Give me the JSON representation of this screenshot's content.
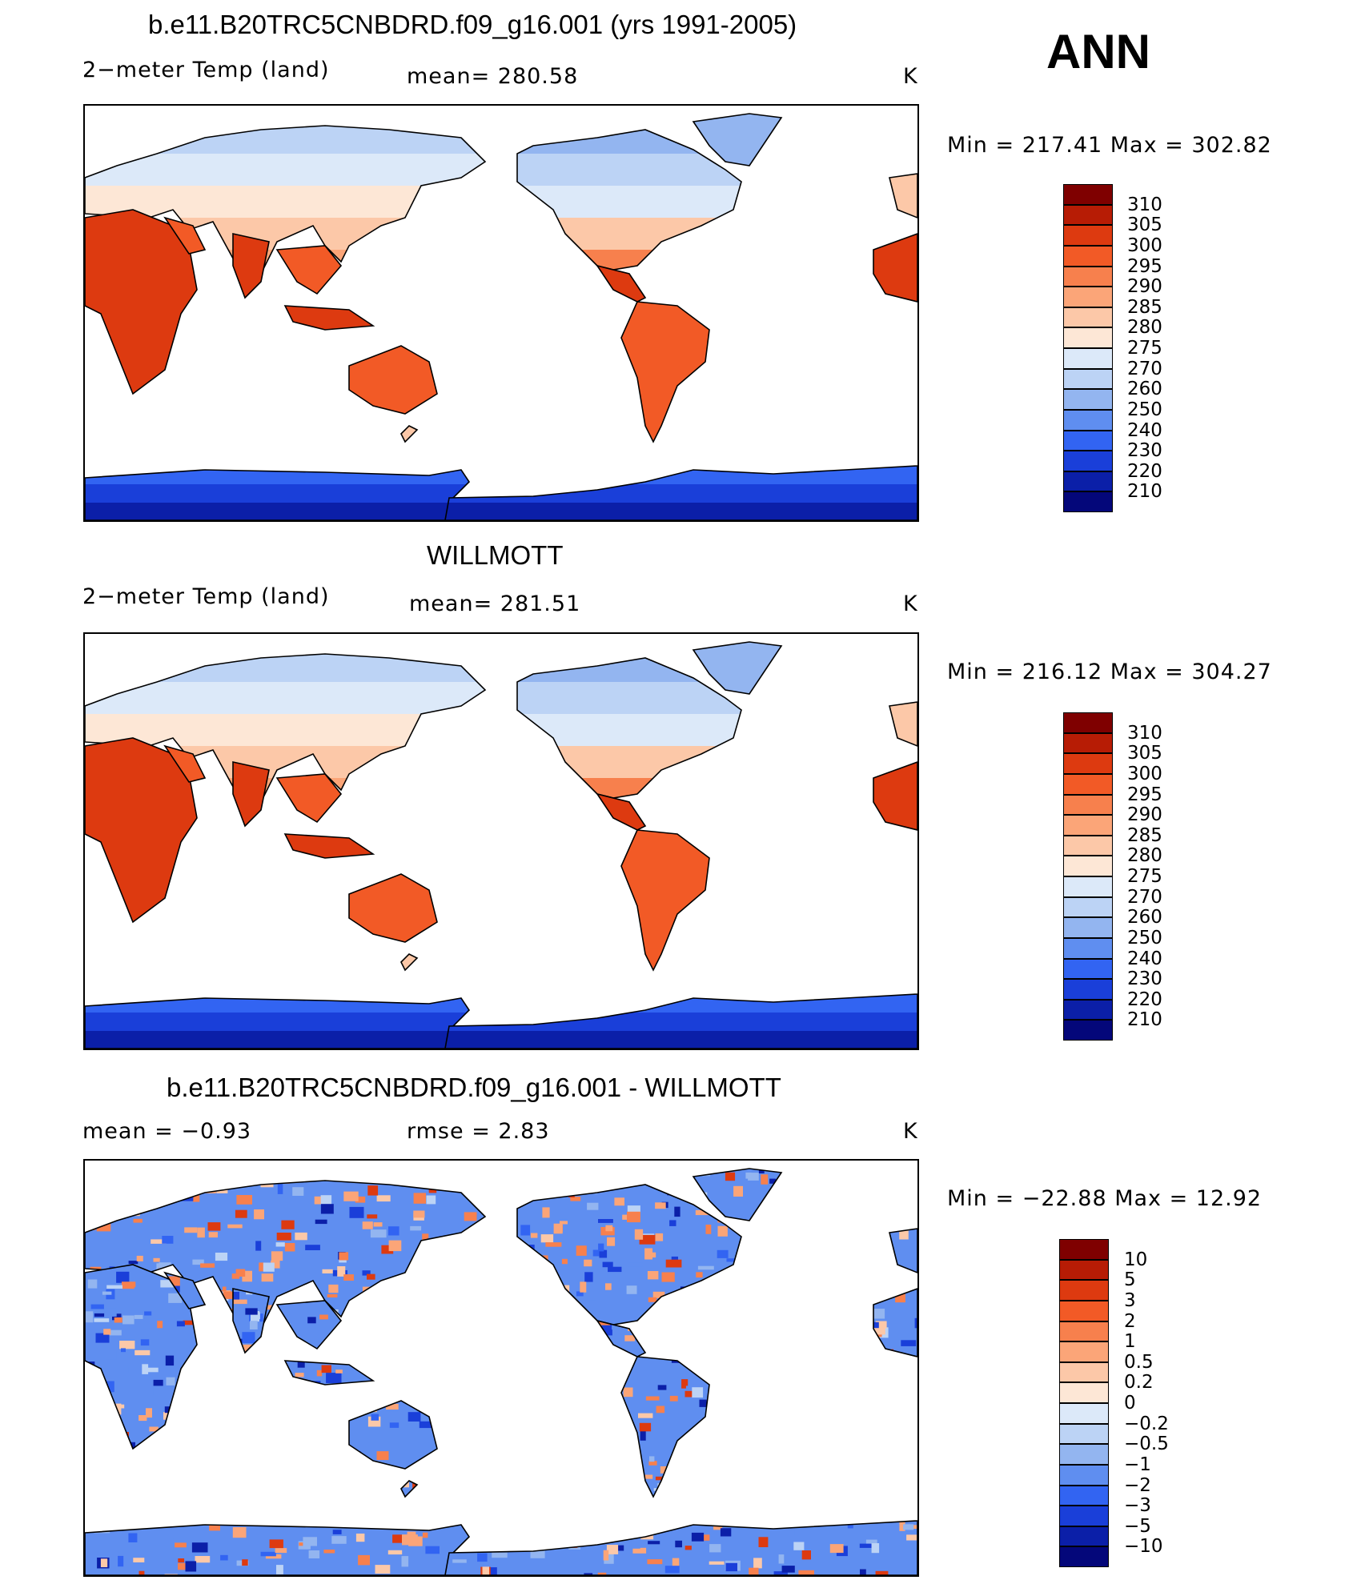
{
  "season": "ANN",
  "panels": [
    {
      "title": "b.e11.B20TRC5CNBDRD.f09_g16.001 (yrs 1991-2005)",
      "left_label": "2−meter Temp (land)",
      "center_label": "mean= 280.58",
      "units": "K",
      "minmax": "Min = 217.41 Max = 302.82",
      "colorbar_labels": [
        "310",
        "305",
        "300",
        "295",
        "290",
        "285",
        "280",
        "275",
        "270",
        "260",
        "250",
        "240",
        "230",
        "220",
        "210"
      ],
      "colors": [
        "#7f0000",
        "#b71c05",
        "#dd3a10",
        "#f25a26",
        "#f7804d",
        "#fba578",
        "#fcc8a8",
        "#fde7d6",
        "#dce9f9",
        "#bcd3f5",
        "#93b5f0",
        "#5f8ef0",
        "#3264f2",
        "#1a3fd9",
        "#0b1fa8",
        "#04077a"
      ],
      "map_style": "absolute"
    },
    {
      "title": "WILLMOTT",
      "left_label": "2−meter Temp (land)",
      "center_label": "mean= 281.51",
      "units": "K",
      "minmax": "Min = 216.12 Max = 304.27",
      "colorbar_labels": [
        "310",
        "305",
        "300",
        "295",
        "290",
        "285",
        "280",
        "275",
        "270",
        "260",
        "250",
        "240",
        "230",
        "220",
        "210"
      ],
      "colors": [
        "#7f0000",
        "#b71c05",
        "#dd3a10",
        "#f25a26",
        "#f7804d",
        "#fba578",
        "#fcc8a8",
        "#fde7d6",
        "#dce9f9",
        "#bcd3f5",
        "#93b5f0",
        "#5f8ef0",
        "#3264f2",
        "#1a3fd9",
        "#0b1fa8",
        "#04077a"
      ],
      "map_style": "absolute"
    },
    {
      "title": "b.e11.B20TRC5CNBDRD.f09_g16.001 - WILLMOTT",
      "left_label": "mean = −0.93",
      "center_label": "rmse = 2.83",
      "units": "K",
      "minmax": "Min = −22.88 Max = 12.92",
      "colorbar_labels": [
        "10",
        "5",
        "3",
        "2",
        "1",
        "0.5",
        "0.2",
        "0",
        "−0.2",
        "−0.5",
        "−1",
        "−2",
        "−3",
        "−5",
        "−10"
      ],
      "colors": [
        "#7f0000",
        "#b71c05",
        "#dd3a10",
        "#f25a26",
        "#f7804d",
        "#fba578",
        "#fcc8a8",
        "#fde7d6",
        "#dce9f9",
        "#bcd3f5",
        "#93b5f0",
        "#5f8ef0",
        "#3264f2",
        "#1a3fd9",
        "#0b1fa8",
        "#04077a"
      ],
      "map_style": "difference"
    }
  ]
}
